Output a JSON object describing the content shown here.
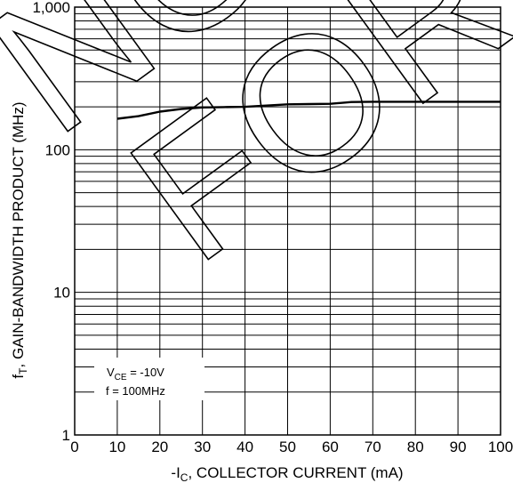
{
  "chart_data": {
    "type": "line",
    "scale_y": "log",
    "xlabel_parts": [
      "-I",
      "C",
      ", COLLECTOR CURRENT (mA)"
    ],
    "ylabel_parts": [
      "f",
      "T",
      ", GAIN-BANDWIDTH PRODUCT (MHz)"
    ],
    "x_ticks": [
      "0",
      "10",
      "20",
      "30",
      "40",
      "50",
      "60",
      "70",
      "80",
      "90",
      "100"
    ],
    "y_ticks": [
      "1",
      "10",
      "100",
      "1,000"
    ],
    "xlim": [
      0,
      100
    ],
    "ylim": [
      1,
      1000
    ],
    "grid": true,
    "series": [
      {
        "x": [
          10,
          15,
          20,
          25,
          30,
          35,
          40,
          45,
          50,
          55,
          60,
          65,
          70,
          75,
          80,
          85,
          90,
          95,
          100
        ],
        "y": [
          165,
          172,
          185,
          193,
          198,
          199,
          200,
          204,
          208,
          209,
          210,
          216,
          217,
          217,
          217,
          217,
          217,
          217,
          217
        ]
      }
    ],
    "annotations": {
      "vce": [
        "V",
        "CE",
        " = -10V"
      ],
      "freq": "f = 100MHz"
    },
    "watermark": [
      "NOT",
      "FOR"
    ],
    "line_color": "#000000"
  }
}
